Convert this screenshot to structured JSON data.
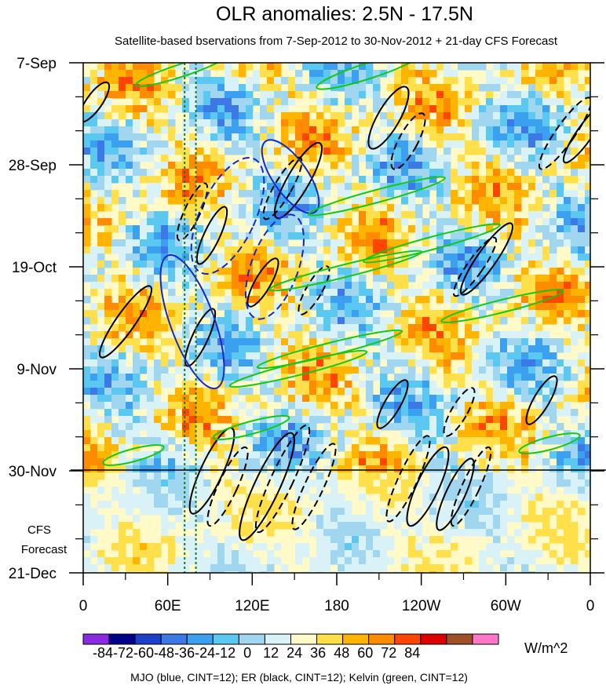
{
  "chart_data": {
    "type": "heatmap",
    "title": "OLR anomalies: 2.5N - 17.5N",
    "subtitle": "Satellite-based bservations from 7-Sep-2012 to 30-Nov-2012 + 21-day CFS Forecast",
    "x_tick_labels": [
      "0",
      "60E",
      "120E",
      "180",
      "120W",
      "60W",
      "0"
    ],
    "x_tick_values_deg_east": [
      0,
      60,
      120,
      180,
      240,
      300,
      360
    ],
    "y_tick_labels": [
      "7-Sep",
      "28-Sep",
      "19-Oct",
      "9-Nov",
      "30-Nov",
      "21-Dec"
    ],
    "y_tick_values_days": [
      0,
      21,
      42,
      63,
      84,
      105
    ],
    "xlim_deg_east": [
      0,
      360
    ],
    "ylim_days_from_7_sep": [
      0,
      105
    ],
    "forecast_start": "30-Nov",
    "forecast_label": [
      "CFS",
      "Forecast"
    ],
    "dotted_reference_lines_deg_east": [
      72,
      80
    ],
    "colorbar": {
      "levels": [
        -84,
        -72,
        -60,
        -48,
        -36,
        -24,
        -12,
        0,
        12,
        24,
        36,
        48,
        60,
        72,
        84
      ],
      "label_text": "-84-72-60-48-36-24-12  0   12  24  36  48  60  72  84",
      "unit": "W/m^2",
      "colors": [
        "#8a2be2",
        "#00008b",
        "#1e40c8",
        "#3c78e6",
        "#3ca0f0",
        "#5ac8f0",
        "#a0d6f0",
        "#d8f2f8",
        "#fffac8",
        "#ffe04a",
        "#ffb400",
        "#ff8c00",
        "#ff4600",
        "#dc0000",
        "#a05028",
        "#ff78c8"
      ]
    },
    "contour_note": "MJO (blue, CINT=12); ER (black, CINT=12); Kelvin (green, CINT=12)",
    "series": [
      {
        "name": "MJO",
        "color": "#1428c8"
      },
      {
        "name": "ER",
        "color": "#000000"
      },
      {
        "name": "Kelvin",
        "color": "#14c814"
      }
    ],
    "grid": false
  }
}
